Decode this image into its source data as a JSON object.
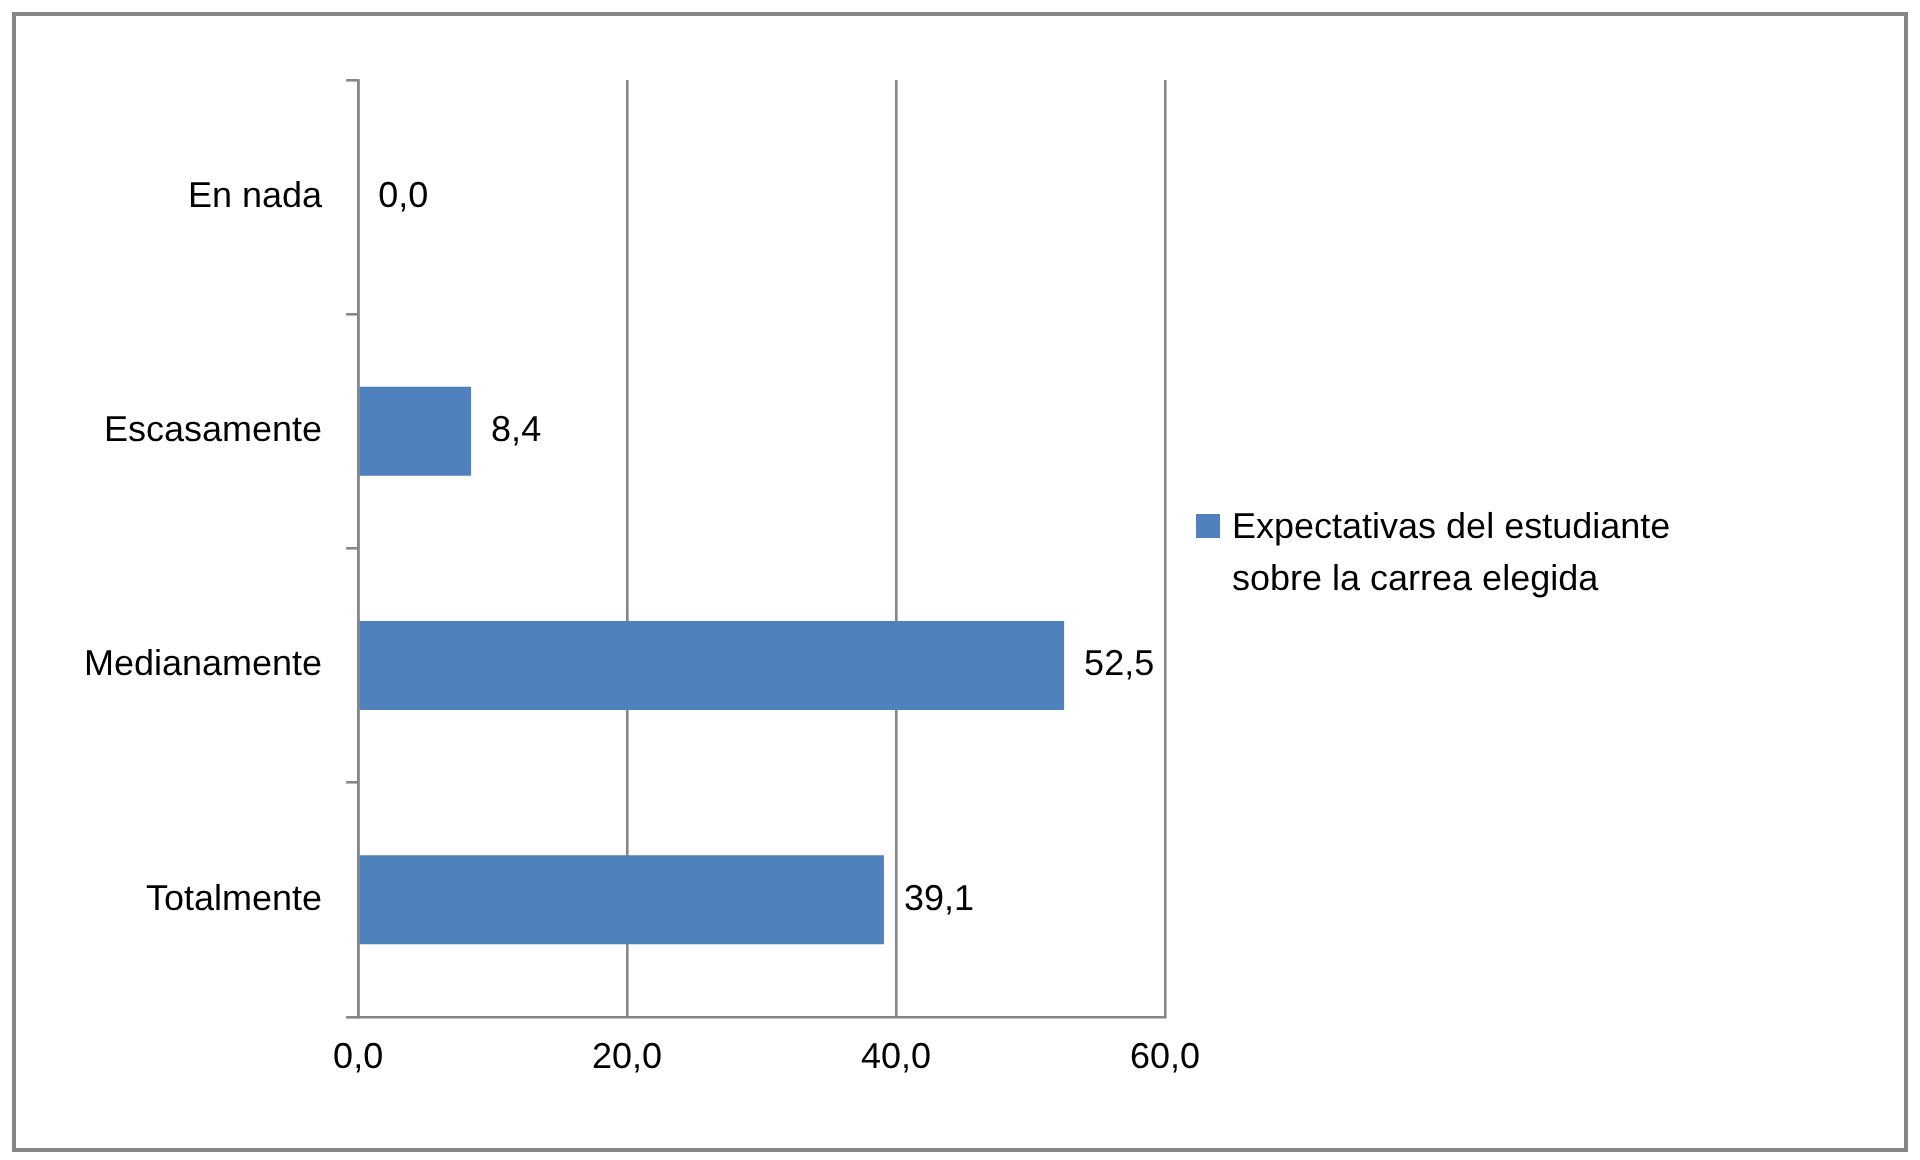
{
  "chart_data": {
    "type": "bar",
    "orientation": "horizontal",
    "categories": [
      "En nada",
      "Escasamente",
      "Medianamente",
      "Totalmente"
    ],
    "series": [
      {
        "name": "Expectativas del estudiante sobre la carrea elegida",
        "color": "#4f81bd",
        "values": [
          0,
          8.4,
          52.5,
          39.1
        ],
        "value_labels": [
          "0,0",
          "8,4",
          "52,5",
          "39,1"
        ]
      }
    ],
    "xlim": [
      0,
      60
    ],
    "xticks": [
      {
        "value": 0,
        "label": "0,0"
      },
      {
        "value": 20,
        "label": "20,0"
      },
      {
        "value": 40,
        "label": "40,0"
      },
      {
        "value": 60,
        "label": "60,0"
      }
    ],
    "grid": "x",
    "legend": "right"
  }
}
